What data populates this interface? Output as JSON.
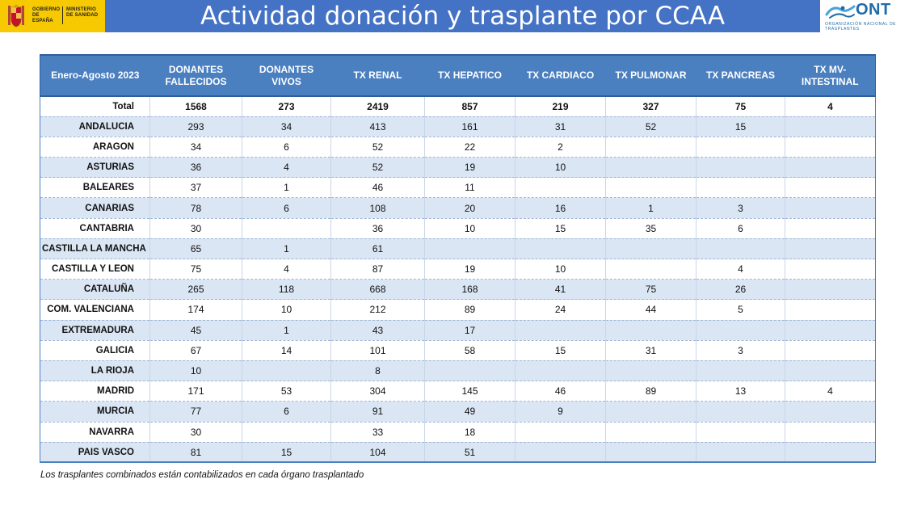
{
  "header": {
    "title": "Actividad donación y trasplante por CCAA",
    "gov_logo_line1": "GOBIERNO DE ESPAÑA",
    "gov_logo_line2": "MINISTERIO DE SANIDAD",
    "ont_logo_word": "ONT",
    "ont_logo_sub": "ORGANIZACIÓN NACIONAL DE TRASPLANTES",
    "band_color": "#4472c4"
  },
  "table": {
    "columns": [
      "Enero-Agosto 2023",
      "DONANTES FALLECIDOS",
      "DONANTES VIVOS",
      "TX RENAL",
      "TX HEPATICO",
      "TX CARDIACO",
      "TX PULMONAR",
      "TX PANCREAS",
      "TX MV-INTESTINAL"
    ],
    "rows": [
      [
        "Total",
        "1568",
        "273",
        "2419",
        "857",
        "219",
        "327",
        "75",
        "4"
      ],
      [
        "ANDALUCIA",
        "293",
        "34",
        "413",
        "161",
        "31",
        "52",
        "15",
        ""
      ],
      [
        "ARAGON",
        "34",
        "6",
        "52",
        "22",
        "2",
        "",
        "",
        ""
      ],
      [
        "ASTURIAS",
        "36",
        "4",
        "52",
        "19",
        "10",
        "",
        "",
        ""
      ],
      [
        "BALEARES",
        "37",
        "1",
        "46",
        "11",
        "",
        "",
        "",
        ""
      ],
      [
        "CANARIAS",
        "78",
        "6",
        "108",
        "20",
        "16",
        "1",
        "3",
        ""
      ],
      [
        "CANTABRIA",
        "30",
        "",
        "36",
        "10",
        "15",
        "35",
        "6",
        ""
      ],
      [
        "CASTILLA LA MANCHA",
        "65",
        "1",
        "61",
        "",
        "",
        "",
        "",
        ""
      ],
      [
        "CASTILLA Y LEON",
        "75",
        "4",
        "87",
        "19",
        "10",
        "",
        "4",
        ""
      ],
      [
        "CATALUÑA",
        "265",
        "118",
        "668",
        "168",
        "41",
        "75",
        "26",
        ""
      ],
      [
        "COM. VALENCIANA",
        "174",
        "10",
        "212",
        "89",
        "24",
        "44",
        "5",
        ""
      ],
      [
        "EXTREMADURA",
        "45",
        "1",
        "43",
        "17",
        "",
        "",
        "",
        ""
      ],
      [
        "GALICIA",
        "67",
        "14",
        "101",
        "58",
        "15",
        "31",
        "3",
        ""
      ],
      [
        "LA RIOJA",
        "10",
        "",
        "8",
        "",
        "",
        "",
        "",
        ""
      ],
      [
        "MADRID",
        "171",
        "53",
        "304",
        "145",
        "46",
        "89",
        "13",
        "4"
      ],
      [
        "MURCIA",
        "77",
        "6",
        "91",
        "49",
        "9",
        "",
        "",
        ""
      ],
      [
        "NAVARRA",
        "30",
        "",
        "33",
        "18",
        "",
        "",
        "",
        ""
      ],
      [
        "PAIS VASCO",
        "81",
        "15",
        "104",
        "51",
        "",
        "",
        "",
        ""
      ]
    ]
  },
  "footnote": "Los trasplantes combinados están contabilizados en cada órgano trasplantado"
}
